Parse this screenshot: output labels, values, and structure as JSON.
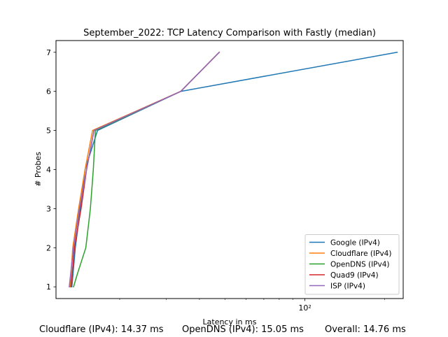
{
  "chart_data": {
    "type": "line",
    "title": "September_2022: TCP Latency Comparison with Fastly (median)",
    "xlabel": "Latency in ms",
    "ylabel": "# Probes",
    "xscale": "log",
    "xlim": [
      11.5,
      235
    ],
    "ylim": [
      0.7,
      7.3
    ],
    "yticks": [
      1,
      2,
      3,
      4,
      5,
      6,
      7
    ],
    "xticks_major": [
      {
        "value": 100,
        "label": "10²"
      }
    ],
    "xticks_minor": [
      20,
      30,
      40,
      50,
      60,
      70,
      80,
      90,
      200
    ],
    "grid": false,
    "legend_position": "lower-right",
    "series": [
      {
        "name": "Google (IPv4)",
        "color": "#1f77b4",
        "points": [
          [
            13.2,
            1
          ],
          [
            13.6,
            2
          ],
          [
            14.2,
            3
          ],
          [
            14.8,
            4
          ],
          [
            16.5,
            5
          ],
          [
            34,
            6
          ],
          [
            223,
            7
          ]
        ]
      },
      {
        "name": "Cloudflare (IPv4)",
        "color": "#ff7f0e",
        "points": [
          [
            13.0,
            1
          ],
          [
            13.3,
            2
          ],
          [
            14.0,
            3
          ],
          [
            14.8,
            4
          ],
          [
            15.8,
            5
          ],
          [
            34,
            6
          ],
          [
            47.5,
            7
          ]
        ]
      },
      {
        "name": "OpenDNS (IPv4)",
        "color": "#2ca02c",
        "points": [
          [
            13.4,
            1
          ],
          [
            13.8,
            1.3
          ],
          [
            14.9,
            2
          ],
          [
            15.5,
            3
          ],
          [
            15.9,
            4
          ],
          [
            16.2,
            5
          ],
          [
            34,
            6
          ],
          [
            47.5,
            7
          ]
        ]
      },
      {
        "name": "Quad9 (IPv4)",
        "color": "#d62728",
        "points": [
          [
            13.1,
            1
          ],
          [
            13.5,
            2
          ],
          [
            14.3,
            3
          ],
          [
            15.0,
            4
          ],
          [
            16.0,
            5
          ],
          [
            34,
            6
          ],
          [
            47.5,
            7
          ]
        ]
      },
      {
        "name": "ISP (IPv4)",
        "color": "#9467bd",
        "points": [
          [
            12.9,
            1
          ],
          [
            13.4,
            2
          ],
          [
            14.1,
            3
          ],
          [
            15.0,
            4
          ],
          [
            16.0,
            5
          ],
          [
            34,
            6
          ],
          [
            47.5,
            7
          ]
        ]
      }
    ]
  },
  "footer": {
    "cloudflare": "Cloudflare (IPv4): 14.37 ms",
    "opendns": "OpenDNS (IPv4): 15.05 ms",
    "overall": "Overall: 14.76 ms"
  }
}
